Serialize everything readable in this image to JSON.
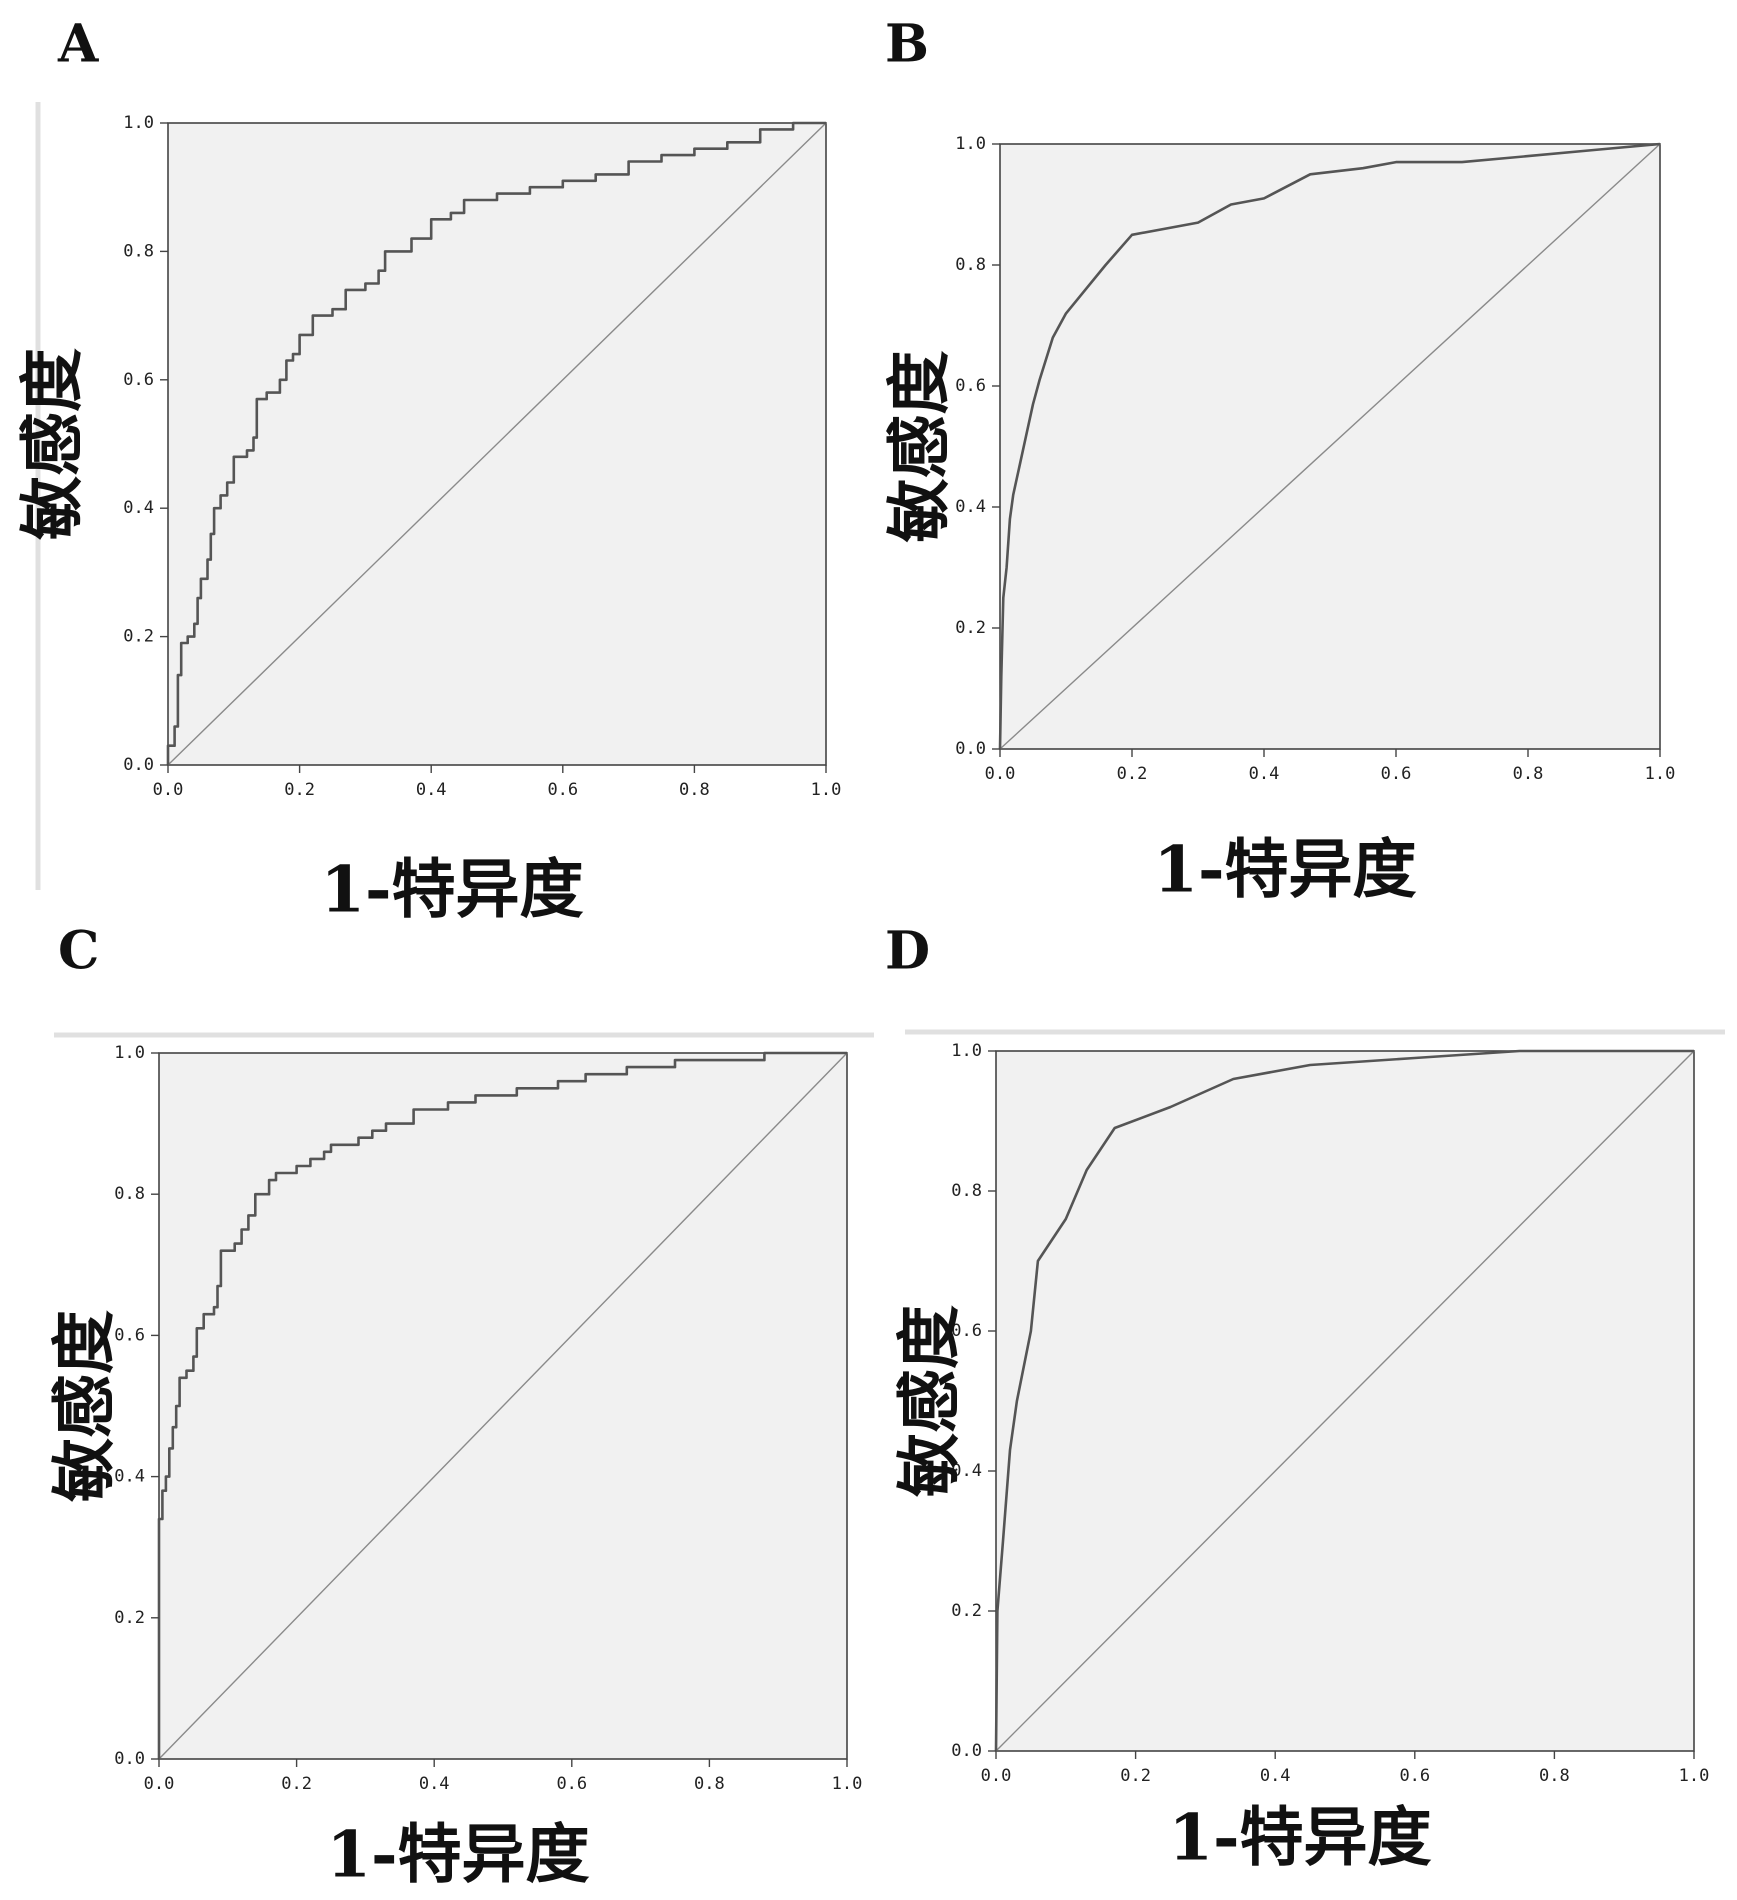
{
  "chart_data": [
    {
      "panel_label": "A",
      "type": "line",
      "step": true,
      "xlabel": "1-特异度",
      "ylabel": "敏感度",
      "xlim": [
        0,
        1
      ],
      "ylim": [
        0,
        1
      ],
      "xticks": [
        "0.0",
        "0.2",
        "0.4",
        "0.6",
        "0.8",
        "1.0"
      ],
      "yticks": [
        "0.0",
        "0.2",
        "0.4",
        "0.6",
        "0.8",
        "1.0"
      ],
      "grid": false,
      "reference_line": [
        [
          0,
          0
        ],
        [
          1,
          1
        ]
      ],
      "points": [
        [
          0,
          0
        ],
        [
          0,
          0.03
        ],
        [
          0.01,
          0.06
        ],
        [
          0.015,
          0.14
        ],
        [
          0.02,
          0.19
        ],
        [
          0.03,
          0.2
        ],
        [
          0.04,
          0.22
        ],
        [
          0.045,
          0.26
        ],
        [
          0.05,
          0.29
        ],
        [
          0.06,
          0.32
        ],
        [
          0.065,
          0.36
        ],
        [
          0.07,
          0.4
        ],
        [
          0.08,
          0.42
        ],
        [
          0.09,
          0.44
        ],
        [
          0.1,
          0.48
        ],
        [
          0.12,
          0.49
        ],
        [
          0.13,
          0.51
        ],
        [
          0.135,
          0.57
        ],
        [
          0.15,
          0.58
        ],
        [
          0.17,
          0.6
        ],
        [
          0.18,
          0.63
        ],
        [
          0.19,
          0.64
        ],
        [
          0.2,
          0.67
        ],
        [
          0.22,
          0.7
        ],
        [
          0.25,
          0.71
        ],
        [
          0.27,
          0.74
        ],
        [
          0.3,
          0.75
        ],
        [
          0.32,
          0.77
        ],
        [
          0.33,
          0.8
        ],
        [
          0.37,
          0.82
        ],
        [
          0.4,
          0.85
        ],
        [
          0.43,
          0.86
        ],
        [
          0.45,
          0.88
        ],
        [
          0.5,
          0.89
        ],
        [
          0.55,
          0.9
        ],
        [
          0.6,
          0.91
        ],
        [
          0.65,
          0.92
        ],
        [
          0.7,
          0.94
        ],
        [
          0.75,
          0.95
        ],
        [
          0.8,
          0.96
        ],
        [
          0.85,
          0.97
        ],
        [
          0.9,
          0.99
        ],
        [
          0.95,
          1.0
        ],
        [
          1,
          1
        ]
      ]
    },
    {
      "panel_label": "B",
      "type": "line",
      "step": false,
      "xlabel": "1-特异度",
      "ylabel": "敏感度",
      "xlim": [
        0,
        1
      ],
      "ylim": [
        0,
        1
      ],
      "xticks": [
        "0.0",
        "0.2",
        "0.4",
        "0.6",
        "0.8",
        "1.0"
      ],
      "yticks": [
        "0.0",
        "0.2",
        "0.4",
        "0.6",
        "0.8",
        "1.0"
      ],
      "grid": false,
      "reference_line": [
        [
          0,
          0
        ],
        [
          1,
          1
        ]
      ],
      "points": [
        [
          0,
          0
        ],
        [
          0.002,
          0.12
        ],
        [
          0.005,
          0.25
        ],
        [
          0.01,
          0.3
        ],
        [
          0.015,
          0.38
        ],
        [
          0.02,
          0.42
        ],
        [
          0.03,
          0.47
        ],
        [
          0.04,
          0.52
        ],
        [
          0.05,
          0.57
        ],
        [
          0.06,
          0.61
        ],
        [
          0.08,
          0.68
        ],
        [
          0.1,
          0.72
        ],
        [
          0.13,
          0.76
        ],
        [
          0.16,
          0.8
        ],
        [
          0.2,
          0.85
        ],
        [
          0.3,
          0.87
        ],
        [
          0.35,
          0.9
        ],
        [
          0.4,
          0.91
        ],
        [
          0.47,
          0.95
        ],
        [
          0.55,
          0.96
        ],
        [
          0.6,
          0.97
        ],
        [
          0.7,
          0.97
        ],
        [
          0.8,
          0.98
        ],
        [
          0.9,
          0.99
        ],
        [
          1,
          1
        ]
      ]
    },
    {
      "panel_label": "C",
      "type": "line",
      "step": true,
      "xlabel": "1-特异度",
      "ylabel": "敏感度",
      "xlim": [
        0,
        1
      ],
      "ylim": [
        0,
        1
      ],
      "xticks": [
        "0.0",
        "0.2",
        "0.4",
        "0.6",
        "0.8",
        "1.0"
      ],
      "yticks": [
        "0.0",
        "0.2",
        "0.4",
        "0.6",
        "0.8",
        "1.0"
      ],
      "grid": false,
      "reference_line": [
        [
          0,
          0
        ],
        [
          1,
          1
        ]
      ],
      "points": [
        [
          0,
          0
        ],
        [
          0,
          0.34
        ],
        [
          0.005,
          0.38
        ],
        [
          0.01,
          0.4
        ],
        [
          0.015,
          0.44
        ],
        [
          0.02,
          0.47
        ],
        [
          0.025,
          0.5
        ],
        [
          0.03,
          0.54
        ],
        [
          0.04,
          0.55
        ],
        [
          0.05,
          0.57
        ],
        [
          0.055,
          0.61
        ],
        [
          0.065,
          0.63
        ],
        [
          0.08,
          0.64
        ],
        [
          0.085,
          0.67
        ],
        [
          0.09,
          0.72
        ],
        [
          0.11,
          0.73
        ],
        [
          0.12,
          0.75
        ],
        [
          0.13,
          0.77
        ],
        [
          0.14,
          0.8
        ],
        [
          0.16,
          0.82
        ],
        [
          0.17,
          0.83
        ],
        [
          0.2,
          0.84
        ],
        [
          0.22,
          0.85
        ],
        [
          0.24,
          0.86
        ],
        [
          0.25,
          0.87
        ],
        [
          0.29,
          0.88
        ],
        [
          0.31,
          0.89
        ],
        [
          0.33,
          0.9
        ],
        [
          0.37,
          0.92
        ],
        [
          0.42,
          0.93
        ],
        [
          0.46,
          0.94
        ],
        [
          0.52,
          0.95
        ],
        [
          0.58,
          0.96
        ],
        [
          0.62,
          0.97
        ],
        [
          0.68,
          0.98
        ],
        [
          0.75,
          0.99
        ],
        [
          0.88,
          1.0
        ],
        [
          1,
          1
        ]
      ]
    },
    {
      "panel_label": "D",
      "type": "line",
      "step": false,
      "xlabel": "1-特异度",
      "ylabel": "敏感度",
      "xlim": [
        0,
        1
      ],
      "ylim": [
        0,
        1
      ],
      "xticks": [
        "0.0",
        "0.2",
        "0.4",
        "0.6",
        "0.8",
        "1.0"
      ],
      "yticks": [
        "0.0",
        "0.2",
        "0.4",
        "0.6",
        "0.8",
        "1.0"
      ],
      "grid": false,
      "reference_line": [
        [
          0,
          0
        ],
        [
          1,
          1
        ]
      ],
      "points": [
        [
          0,
          0
        ],
        [
          0.002,
          0.2
        ],
        [
          0.01,
          0.3
        ],
        [
          0.02,
          0.43
        ],
        [
          0.03,
          0.5
        ],
        [
          0.05,
          0.6
        ],
        [
          0.06,
          0.7
        ],
        [
          0.1,
          0.76
        ],
        [
          0.13,
          0.83
        ],
        [
          0.17,
          0.89
        ],
        [
          0.25,
          0.92
        ],
        [
          0.34,
          0.96
        ],
        [
          0.45,
          0.98
        ],
        [
          0.6,
          0.99
        ],
        [
          0.75,
          1.0
        ],
        [
          1,
          1
        ]
      ]
    }
  ]
}
